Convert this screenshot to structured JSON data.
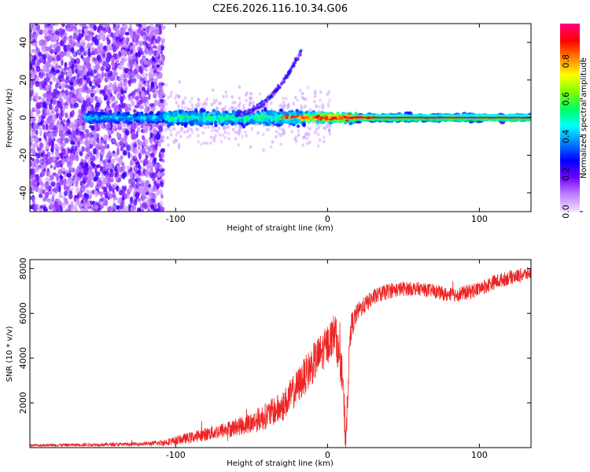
{
  "title": "C2E6.2026.116.10.34.G06",
  "chart_data": [
    {
      "type": "heatmap",
      "name": "spectrogram",
      "xlabel": "Height of straight line (km)",
      "ylabel": "Frequency (Hz)",
      "xlim": [
        -196,
        134
      ],
      "ylim": [
        -50,
        50
      ],
      "xticks": [
        -100,
        0,
        100
      ],
      "xtick_labels": [
        "-100",
        "0",
        "100"
      ],
      "yticks": [
        -40,
        -20,
        0,
        20,
        40
      ],
      "ytick_labels": [
        "-40",
        "-20",
        "0",
        "20",
        "40"
      ],
      "colorbar": {
        "label": "Normalized spectral amplitude",
        "range": [
          0,
          1
        ],
        "ticks": [
          0.0,
          0.2,
          0.4,
          0.6,
          0.8
        ],
        "tick_labels": [
          "0.0",
          "0.2",
          "0.4",
          "0.6",
          "0.8"
        ],
        "colors": [
          "#f2e0ff",
          "#c080ff",
          "#7000ff",
          "#0000ff",
          "#0080ff",
          "#00ffff",
          "#00ff60",
          "#80ff00",
          "#ffff00",
          "#ff8000",
          "#ff0000",
          "#ff0080"
        ]
      },
      "features": {
        "noise_region_x": [
          -196,
          -108
        ],
        "core_band_freq": 0,
        "core_band_x": [
          -160,
          134
        ],
        "chirp": {
          "x": [
            -60,
            -17
          ],
          "freq": [
            2,
            36
          ]
        }
      }
    },
    {
      "type": "line",
      "name": "snr",
      "xlabel": "Height of straight line (km)",
      "ylabel": "SNR (10 * v/v)",
      "xlim": [
        -196,
        134
      ],
      "ylim": [
        0,
        8400
      ],
      "xticks": [
        -100,
        0,
        100
      ],
      "xtick_labels": [
        "-100",
        "0",
        "100"
      ],
      "yticks": [
        2000,
        4000,
        6000,
        8000
      ],
      "ytick_labels": [
        "2000",
        "4000",
        "6000",
        "8000"
      ],
      "color": "#ee2222",
      "trend": {
        "x": [
          -196,
          -130,
          -110,
          -90,
          -70,
          -50,
          -30,
          -20,
          -10,
          0,
          5,
          10,
          12,
          15,
          20,
          30,
          40,
          50,
          60,
          70,
          80,
          90,
          100,
          110,
          120,
          134
        ],
        "y": [
          100,
          150,
          200,
          450,
          750,
          1100,
          1800,
          2700,
          3700,
          4600,
          5200,
          3000,
          300,
          5300,
          6100,
          6700,
          7000,
          7100,
          7100,
          7000,
          6800,
          6900,
          7100,
          7400,
          7600,
          7800
        ]
      },
      "noise_amp": {
        "x": [
          -196,
          -120,
          -90,
          -60,
          -30,
          -10,
          0,
          10,
          20,
          60,
          100,
          134
        ],
        "y": [
          60,
          80,
          250,
          400,
          700,
          900,
          900,
          900,
          400,
          300,
          350,
          300
        ]
      }
    }
  ]
}
